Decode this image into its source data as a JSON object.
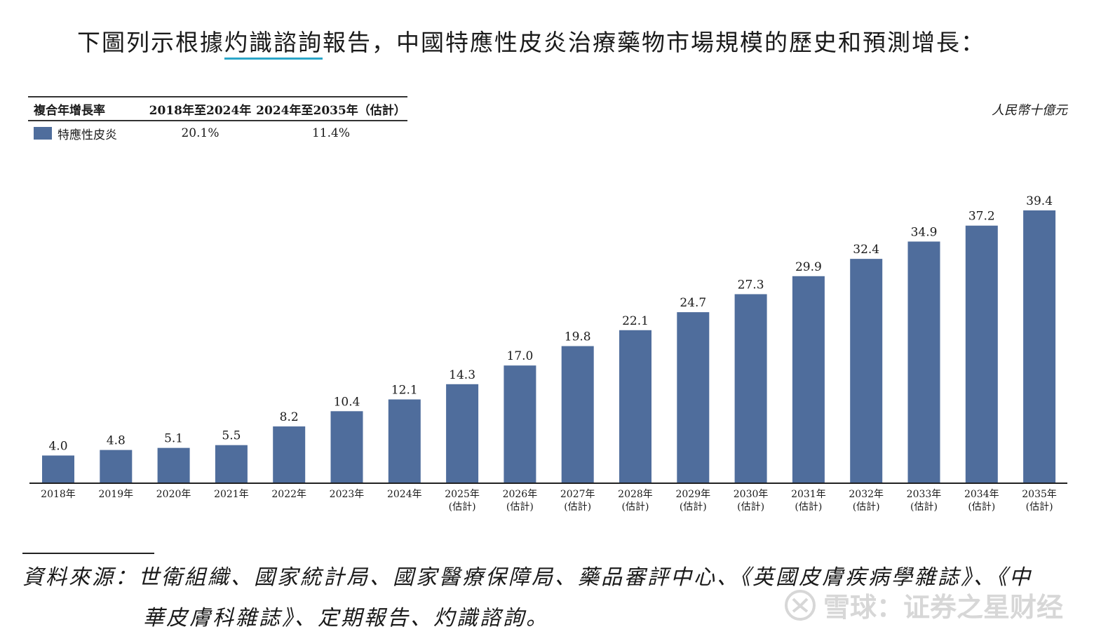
{
  "intro": {
    "before": "下圖列示根據",
    "highlight": "灼識諮詢",
    "after": "報告，中國特應性皮炎治療藥物市場規模的歷史和預測增長："
  },
  "cagr_table": {
    "header": [
      "複合年增長率",
      "2018年至2024年",
      "2024年至2035年（估計）"
    ],
    "series_name": "特應性皮炎",
    "values": [
      "20.1%",
      "11.4%"
    ]
  },
  "unit": "人民幣十億元",
  "chart_data": {
    "type": "bar",
    "categories": [
      "2018年",
      "2019年",
      "2020年",
      "2021年",
      "2022年",
      "2023年",
      "2024年",
      "2025年",
      "2026年",
      "2027年",
      "2028年",
      "2029年",
      "2030年",
      "2031年",
      "2032年",
      "2033年",
      "2034年",
      "2035年"
    ],
    "estimate_suffix": "(估計)",
    "estimate_from_index": 7,
    "series": [
      {
        "name": "特應性皮炎",
        "values": [
          4.0,
          4.8,
          5.1,
          5.5,
          8.2,
          10.4,
          12.1,
          14.3,
          17.0,
          19.8,
          22.1,
          24.7,
          27.3,
          29.9,
          32.4,
          34.9,
          37.2,
          39.4
        ]
      }
    ],
    "value_labels": [
      "4.0",
      "4.8",
      "5.1",
      "5.5",
      "8.2",
      "10.4",
      "12.1",
      "14.3",
      "17.0",
      "19.8",
      "22.1",
      "24.7",
      "27.3",
      "29.9",
      "32.4",
      "34.9",
      "37.2",
      "39.4"
    ],
    "ylim": [
      0,
      39.4
    ],
    "bar_color": "#4f6d9c",
    "title": "",
    "xlabel": "",
    "ylabel": "人民幣十億元"
  },
  "source": {
    "line1": "資料來源：世衛組織、國家統計局、國家醫療保障局、藥品審評中心、《英國皮膚疾病學雜誌》、《中",
    "line2": "華皮膚科雜誌》、定期報告、灼識諮詢。"
  },
  "watermark": {
    "text": "雪球：证券之星财经",
    "icon": "snowball-logo-icon"
  }
}
